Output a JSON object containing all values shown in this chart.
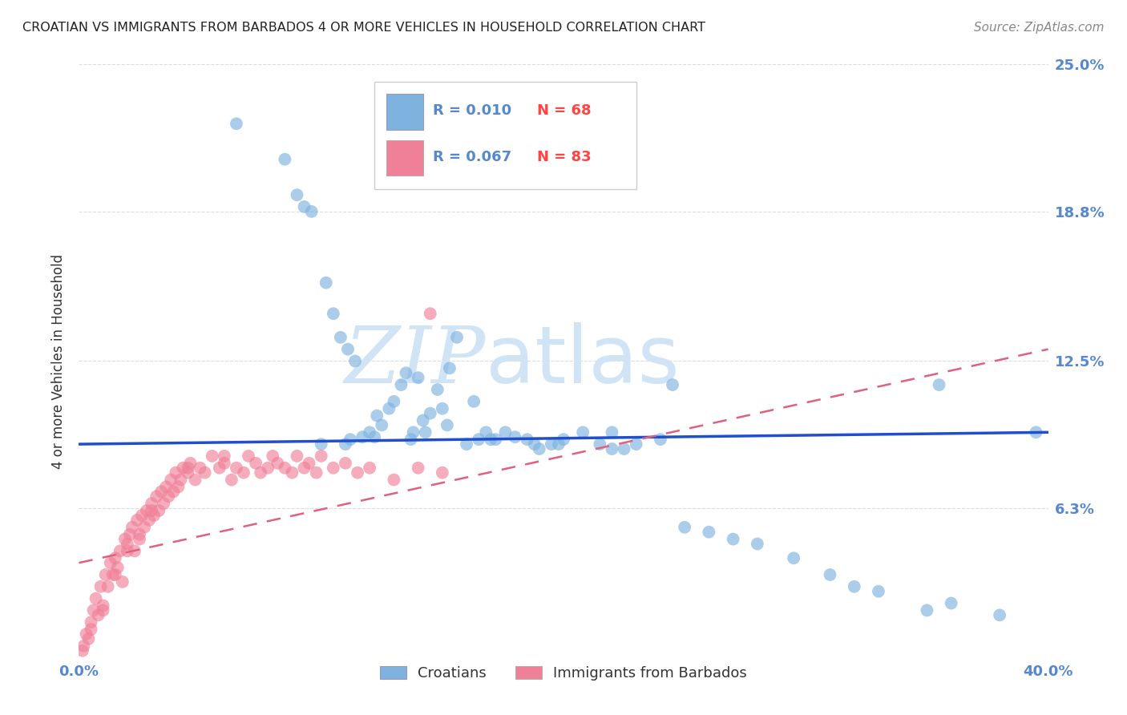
{
  "title": "CROATIAN VS IMMIGRANTS FROM BARBADOS 4 OR MORE VEHICLES IN HOUSEHOLD CORRELATION CHART",
  "source": "Source: ZipAtlas.com",
  "ylabel": "4 or more Vehicles in Household",
  "xlim": [
    0.0,
    40.0
  ],
  "ylim": [
    0.0,
    25.0
  ],
  "yticks": [
    0.0,
    6.3,
    12.5,
    18.8,
    25.0
  ],
  "ytick_labels": [
    "",
    "6.3%",
    "12.5%",
    "18.8%",
    "25.0%"
  ],
  "xtick_labels_show": [
    "0.0%",
    "40.0%"
  ],
  "croatians_color": "#7EB3E0",
  "barbados_color": "#F08098",
  "croatians_reg_color": "#1F4FCC",
  "barbados_reg_color": "#E06080",
  "croatians_label": "Croatians",
  "barbados_label": "Immigrants from Barbados",
  "croatians_R": "0.010",
  "croatians_N": "68",
  "barbados_R": "0.067",
  "barbados_N": "83",
  "croatians_x": [
    6.5,
    8.5,
    9.0,
    9.3,
    9.6,
    10.2,
    10.5,
    10.8,
    11.1,
    11.4,
    11.7,
    12.0,
    12.3,
    12.5,
    12.8,
    13.0,
    13.3,
    13.5,
    13.7,
    14.0,
    14.2,
    14.5,
    14.8,
    15.0,
    15.3,
    15.6,
    16.0,
    16.3,
    16.8,
    17.2,
    17.6,
    18.0,
    18.5,
    19.0,
    19.5,
    20.0,
    20.8,
    21.5,
    22.0,
    22.5,
    23.0,
    24.0,
    25.0,
    26.0,
    27.0,
    28.0,
    29.5,
    31.0,
    32.0,
    33.0,
    35.0,
    36.0,
    38.0,
    39.5,
    11.0,
    11.2,
    13.8,
    15.2,
    16.5,
    18.8,
    10.0,
    12.2,
    14.3,
    17.0,
    19.8,
    22.0,
    24.5,
    35.5
  ],
  "croatians_y": [
    22.5,
    21.0,
    19.5,
    19.0,
    18.8,
    15.8,
    14.5,
    13.5,
    13.0,
    12.5,
    9.3,
    9.5,
    10.2,
    9.8,
    10.5,
    10.8,
    11.5,
    12.0,
    9.2,
    11.8,
    10.0,
    10.3,
    11.3,
    10.5,
    12.2,
    13.5,
    9.0,
    10.8,
    9.5,
    9.2,
    9.5,
    9.3,
    9.2,
    8.8,
    9.0,
    9.2,
    9.5,
    9.0,
    9.5,
    8.8,
    9.0,
    9.2,
    5.5,
    5.3,
    5.0,
    4.8,
    4.2,
    3.5,
    3.0,
    2.8,
    2.0,
    2.3,
    1.8,
    9.5,
    9.0,
    9.2,
    9.5,
    9.8,
    9.2,
    9.0,
    9.0,
    9.3,
    9.5,
    9.2,
    9.0,
    8.8,
    11.5,
    11.5
  ],
  "barbados_x": [
    0.2,
    0.3,
    0.4,
    0.5,
    0.6,
    0.7,
    0.8,
    0.9,
    1.0,
    1.1,
    1.2,
    1.3,
    1.4,
    1.5,
    1.6,
    1.7,
    1.8,
    1.9,
    2.0,
    2.1,
    2.2,
    2.3,
    2.4,
    2.5,
    2.6,
    2.7,
    2.8,
    2.9,
    3.0,
    3.1,
    3.2,
    3.3,
    3.4,
    3.5,
    3.6,
    3.7,
    3.8,
    3.9,
    4.0,
    4.1,
    4.2,
    4.3,
    4.5,
    4.6,
    4.8,
    5.0,
    5.2,
    5.5,
    5.8,
    6.0,
    6.3,
    6.5,
    6.8,
    7.0,
    7.3,
    7.5,
    7.8,
    8.0,
    8.2,
    8.5,
    8.8,
    9.0,
    9.3,
    9.5,
    9.8,
    10.0,
    10.5,
    11.0,
    11.5,
    12.0,
    13.0,
    14.0,
    15.0,
    0.15,
    0.5,
    1.0,
    1.5,
    2.0,
    2.5,
    3.0,
    4.5,
    6.0,
    14.5
  ],
  "barbados_y": [
    0.5,
    1.0,
    0.8,
    1.5,
    2.0,
    2.5,
    1.8,
    3.0,
    2.2,
    3.5,
    3.0,
    4.0,
    3.5,
    4.2,
    3.8,
    4.5,
    3.2,
    5.0,
    4.8,
    5.2,
    5.5,
    4.5,
    5.8,
    5.0,
    6.0,
    5.5,
    6.2,
    5.8,
    6.5,
    6.0,
    6.8,
    6.2,
    7.0,
    6.5,
    7.2,
    6.8,
    7.5,
    7.0,
    7.8,
    7.2,
    7.5,
    8.0,
    7.8,
    8.2,
    7.5,
    8.0,
    7.8,
    8.5,
    8.0,
    8.2,
    7.5,
    8.0,
    7.8,
    8.5,
    8.2,
    7.8,
    8.0,
    8.5,
    8.2,
    8.0,
    7.8,
    8.5,
    8.0,
    8.2,
    7.8,
    8.5,
    8.0,
    8.2,
    7.8,
    8.0,
    7.5,
    8.0,
    7.8,
    0.3,
    1.2,
    2.0,
    3.5,
    4.5,
    5.2,
    6.2,
    8.0,
    8.5,
    14.5
  ],
  "watermark_zip": "ZIP",
  "watermark_atlas": "atlas",
  "watermark_color": "#D0E4F5",
  "title_color": "#222222",
  "source_color": "#888888",
  "tick_color": "#5588CC",
  "grid_color": "#DDDDDD",
  "background_color": "#FFFFFF",
  "legend_edge_color": "#CCCCCC"
}
